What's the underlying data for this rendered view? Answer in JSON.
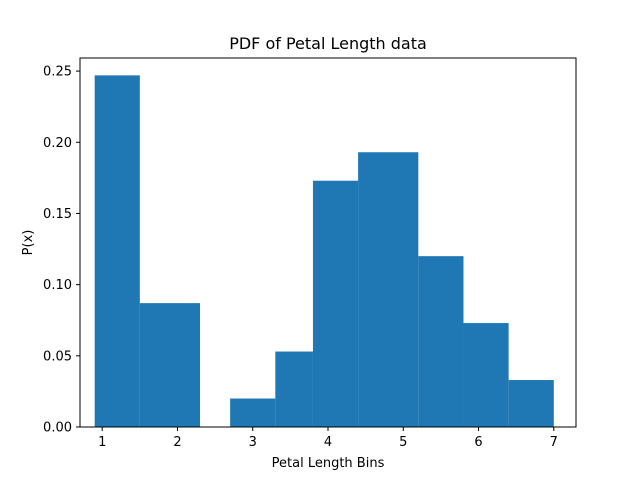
{
  "chart_data": {
    "type": "bar",
    "title": "PDF of Petal Length data",
    "xlabel": "Petal Length Bins",
    "ylabel": "P(x)",
    "xlim": [
      0.705,
      7.295
    ],
    "ylim": [
      0,
      0.2592
    ],
    "grid": false,
    "bar_color": "#1f77b4",
    "bins": [
      {
        "start": 0.9,
        "end": 1.5,
        "value": 0.247
      },
      {
        "start": 1.5,
        "end": 2.3,
        "value": 0.087
      },
      {
        "start": 2.3,
        "end": 2.7,
        "value": 0.0
      },
      {
        "start": 2.7,
        "end": 3.3,
        "value": 0.02
      },
      {
        "start": 3.3,
        "end": 3.8,
        "value": 0.053
      },
      {
        "start": 3.8,
        "end": 4.4,
        "value": 0.173
      },
      {
        "start": 4.4,
        "end": 5.2,
        "value": 0.193
      },
      {
        "start": 5.2,
        "end": 5.8,
        "value": 0.12
      },
      {
        "start": 5.8,
        "end": 6.4,
        "value": 0.073
      },
      {
        "start": 6.4,
        "end": 7.0,
        "value": 0.033
      }
    ],
    "x_ticks": [
      {
        "value": 1,
        "label": "1"
      },
      {
        "value": 2,
        "label": "2"
      },
      {
        "value": 3,
        "label": "3"
      },
      {
        "value": 4,
        "label": "4"
      },
      {
        "value": 5,
        "label": "5"
      },
      {
        "value": 6,
        "label": "6"
      },
      {
        "value": 7,
        "label": "7"
      }
    ],
    "y_ticks": [
      {
        "value": 0.0,
        "label": "0.00"
      },
      {
        "value": 0.05,
        "label": "0.05"
      },
      {
        "value": 0.1,
        "label": "0.10"
      },
      {
        "value": 0.15,
        "label": "0.15"
      },
      {
        "value": 0.2,
        "label": "0.20"
      },
      {
        "value": 0.25,
        "label": "0.25"
      }
    ]
  }
}
